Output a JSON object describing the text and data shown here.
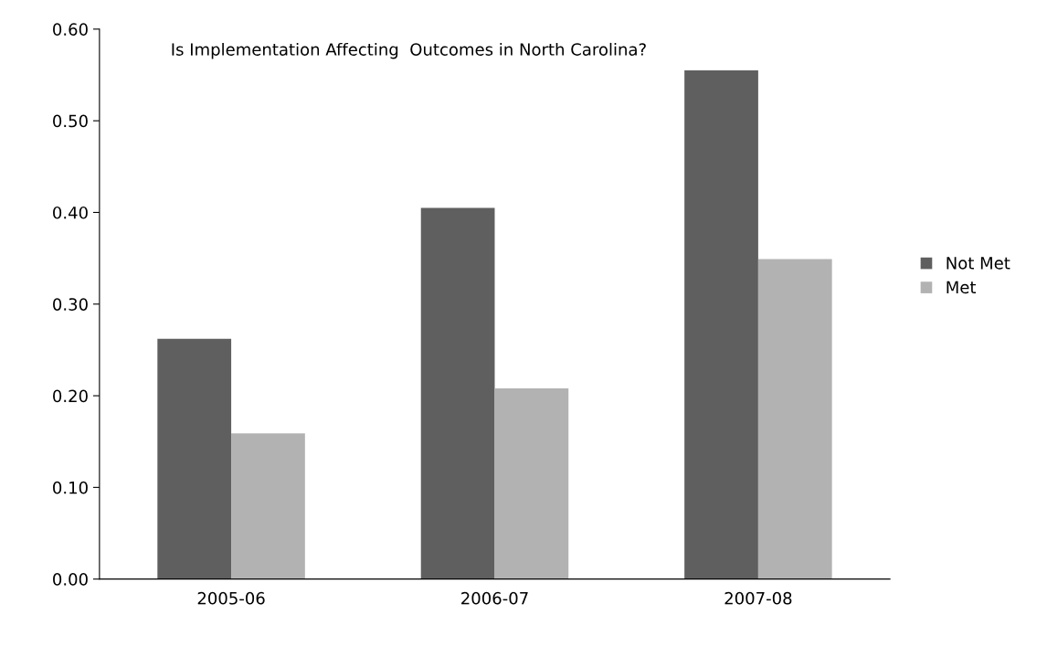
{
  "chart_data": {
    "type": "bar",
    "title": "Is Implementation Affecting  Outcomes in North Carolina?",
    "categories": [
      "2005-06",
      "2006-07",
      "2007-08"
    ],
    "series": [
      {
        "name": "Not Met",
        "color": "#5f5f5f",
        "values": [
          0.262,
          0.405,
          0.555
        ]
      },
      {
        "name": "Met",
        "color": "#b2b2b2",
        "values": [
          0.159,
          0.208,
          0.349
        ]
      }
    ],
    "ylim": [
      0,
      0.6
    ],
    "yticks": [
      {
        "value": 0,
        "label": "0.00"
      },
      {
        "value": 0.1,
        "label": "0.10"
      },
      {
        "value": 0.2,
        "label": "0.20"
      },
      {
        "value": 0.3,
        "label": "0.30"
      },
      {
        "value": 0.4,
        "label": "0.40"
      },
      {
        "value": 0.5,
        "label": "0.50"
      },
      {
        "value": 0.6,
        "label": "0.60"
      }
    ],
    "grid": false,
    "legend": "right"
  }
}
